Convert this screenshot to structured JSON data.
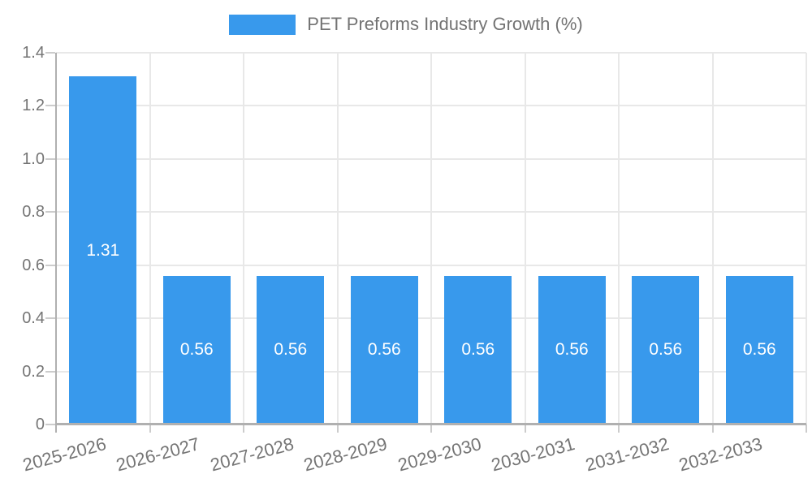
{
  "legend": {
    "series_label": "PET Preforms Industry Growth (%)"
  },
  "chart_data": {
    "type": "bar",
    "title": "PET Preforms Industry Growth (%)",
    "categories": [
      "2025-2026",
      "2026-2027",
      "2027-2028",
      "2028-2029",
      "2029-2030",
      "2030-2031",
      "2031-2032",
      "2032-2033"
    ],
    "values": [
      1.31,
      0.56,
      0.56,
      0.56,
      0.56,
      0.56,
      0.56,
      0.56
    ],
    "value_labels": [
      "1.31",
      "0.56",
      "0.56",
      "0.56",
      "0.56",
      "0.56",
      "0.56",
      "0.56"
    ],
    "xlabel": "",
    "ylabel": "",
    "ylim": [
      0,
      1.4
    ],
    "ytick_labels": [
      "0",
      "0.2",
      "0.4",
      "0.6",
      "0.8",
      "1.0",
      "1.2",
      "1.4"
    ],
    "grid": true,
    "legend_position": "top-center",
    "x_label_rotation_deg": -15,
    "colors": {
      "bar": "#3899EC",
      "bar_label": "#ffffff",
      "axis_text": "#757575",
      "legend_text": "#737373",
      "gridline": "#e8e8e8",
      "tick": "#cccccc",
      "axis_line": "#b0b0b0",
      "background": "#ffffff"
    }
  }
}
